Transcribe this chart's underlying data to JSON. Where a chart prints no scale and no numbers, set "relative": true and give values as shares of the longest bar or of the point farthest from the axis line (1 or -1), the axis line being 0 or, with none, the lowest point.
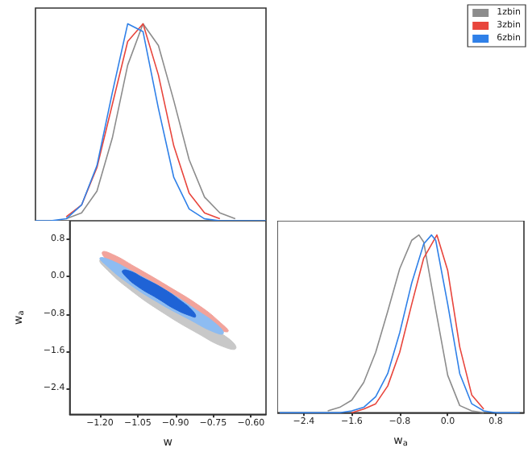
{
  "chart_data": [
    {
      "type": "line",
      "relative": true,
      "categories": [
        null,
        null,
        null,
        null,
        null,
        null,
        null,
        null,
        null,
        null,
        null,
        null,
        null,
        null,
        null,
        null
      ],
      "tick_labels": false,
      "legend": "top right",
      "series": [
        {
          "name": "1zbin",
          "color": "#8c8c8c",
          "values": [
            null,
            null,
            0.01,
            0.04,
            0.15,
            0.42,
            0.79,
            1.0,
            0.89,
            0.61,
            0.31,
            0.12,
            0.04,
            0.01,
            null,
            null
          ]
        },
        {
          "name": "3zbin",
          "color": "#e8453c",
          "values": [
            null,
            null,
            0.02,
            0.08,
            0.27,
            0.59,
            0.91,
            1.0,
            0.74,
            0.38,
            0.14,
            0.04,
            0.01,
            null,
            null,
            null
          ]
        },
        {
          "name": "6zbin",
          "color": "#2f80e8",
          "values": [
            0,
            0,
            0.01,
            0.08,
            0.28,
            0.65,
            1.0,
            0.96,
            0.57,
            0.22,
            0.06,
            0.01,
            0,
            0,
            0,
            0
          ]
        }
      ]
    },
    {
      "type": "area",
      "xlabel": "w",
      "ylabel": "w$_{a}$",
      "xlim": [
        -1.32,
        -0.54
      ],
      "xticks": [
        {
          "value": -1.2,
          "label": "−1.20"
        },
        {
          "value": -1.05,
          "label": "−1.05"
        },
        {
          "value": -0.9,
          "label": "−0.90"
        },
        {
          "value": -0.75,
          "label": "−0.75"
        },
        {
          "value": -0.6,
          "label": "−0.60"
        }
      ],
      "ylim": [
        -2.95,
        1.2
      ],
      "yticks": [
        {
          "value": -2.4,
          "label": "−2.4"
        },
        {
          "value": -1.6,
          "label": "−1.6"
        },
        {
          "value": -0.8,
          "label": "−0.8"
        },
        {
          "value": 0,
          "label": "0.0"
        },
        {
          "value": 0.8,
          "label": "0.8"
        }
      ],
      "series": [
        {
          "color": "#c8c8c8",
          "x": [
            -0.66,
            -0.71,
            -0.81,
            -0.95,
            -1.08,
            -1.17,
            -1.2,
            -1.15,
            -1.05,
            -0.91,
            -0.78,
            -0.69
          ],
          "values": [
            -1.54,
            -1.5,
            -1.22,
            -0.77,
            -0.28,
            0.14,
            0.36,
            0.33,
            null,
            null,
            null,
            -1.32
          ]
        },
        {
          "color": "#f2a39b",
          "x": [
            -0.69,
            -0.73,
            -0.83,
            -0.95,
            -1.08,
            -1.17,
            -1.19,
            -1.15,
            -1.06,
            -0.93,
            -0.8,
            -0.72
          ],
          "values": [
            -1.17,
            -1.12,
            null,
            null,
            null,
            0.36,
            0.53,
            0.48,
            0.21,
            -0.2,
            -0.64,
            -0.99
          ]
        },
        {
          "color": "#8dbcf2",
          "x": [
            -0.71,
            -0.75,
            -0.84,
            -0.97,
            -1.09,
            -1.17,
            -1.2,
            -1.16,
            -1.07,
            -0.94,
            -0.82,
            -0.73
          ],
          "values": [
            -1.22,
            -1.18,
            -0.93,
            -0.55,
            -0.13,
            0.22,
            0.4,
            0.36,
            0.11,
            -0.28,
            -0.7,
            -1.05
          ]
        },
        {
          "color": "#1f63d6",
          "x": [
            -0.82,
            -0.84,
            -0.9,
            -0.97,
            -1.05,
            -1.1,
            -1.11,
            -1.08,
            -1.03,
            -0.95,
            -0.88,
            -0.83
          ],
          "values": [
            -0.86,
            -0.84,
            -0.7,
            -0.47,
            -0.21,
            0.02,
            0.13,
            0.12,
            -0.02,
            -0.25,
            -0.51,
            -0.74
          ]
        }
      ]
    },
    {
      "type": "line",
      "relative": true,
      "xlabel": "w$_{a}$",
      "xlim": [
        -2.84,
        1.27
      ],
      "xticks": [
        {
          "value": -2.4,
          "label": "−2.4"
        },
        {
          "value": -1.6,
          "label": "−1.6"
        },
        {
          "value": -0.8,
          "label": "−0.8"
        },
        {
          "value": 0,
          "label": "0.0"
        },
        {
          "value": 0.8,
          "label": "0.8"
        }
      ],
      "tick_labels": "x",
      "series": [
        {
          "color": "#8c8c8c",
          "x": [
            -2.0,
            -1.8,
            -1.6,
            -1.4,
            -1.2,
            -1.0,
            -0.8,
            -0.6,
            -0.48,
            -0.4,
            -0.2,
            0.0,
            0.2,
            0.4,
            0.6
          ],
          "values": [
            0.01,
            0.03,
            0.07,
            0.17,
            0.34,
            0.57,
            0.81,
            0.97,
            1.0,
            0.96,
            0.58,
            0.21,
            0.04,
            0.01,
            0
          ]
        },
        {
          "color": "#e8453c",
          "x": [
            -1.6,
            -1.4,
            -1.2,
            -1.0,
            -0.8,
            -0.6,
            -0.4,
            -0.18,
            0.0,
            0.2,
            0.4,
            0.6
          ],
          "values": [
            0,
            0.02,
            0.05,
            0.15,
            0.34,
            0.61,
            0.87,
            1.0,
            0.8,
            0.37,
            0.1,
            0.02
          ]
        },
        {
          "color": "#2f80e8",
          "x": [
            -2.8,
            -2.4,
            -2.0,
            -1.8,
            -1.6,
            -1.4,
            -1.2,
            -1.0,
            -0.8,
            -0.6,
            -0.4,
            -0.27,
            -0.2,
            0.0,
            0.2,
            0.4,
            0.6,
            0.8,
            1.0,
            1.2
          ],
          "values": [
            0,
            0,
            0,
            0,
            0.01,
            0.03,
            0.09,
            0.22,
            0.45,
            0.73,
            0.95,
            1.0,
            0.97,
            0.61,
            0.22,
            0.05,
            0.01,
            0,
            0,
            0
          ]
        }
      ]
    }
  ]
}
